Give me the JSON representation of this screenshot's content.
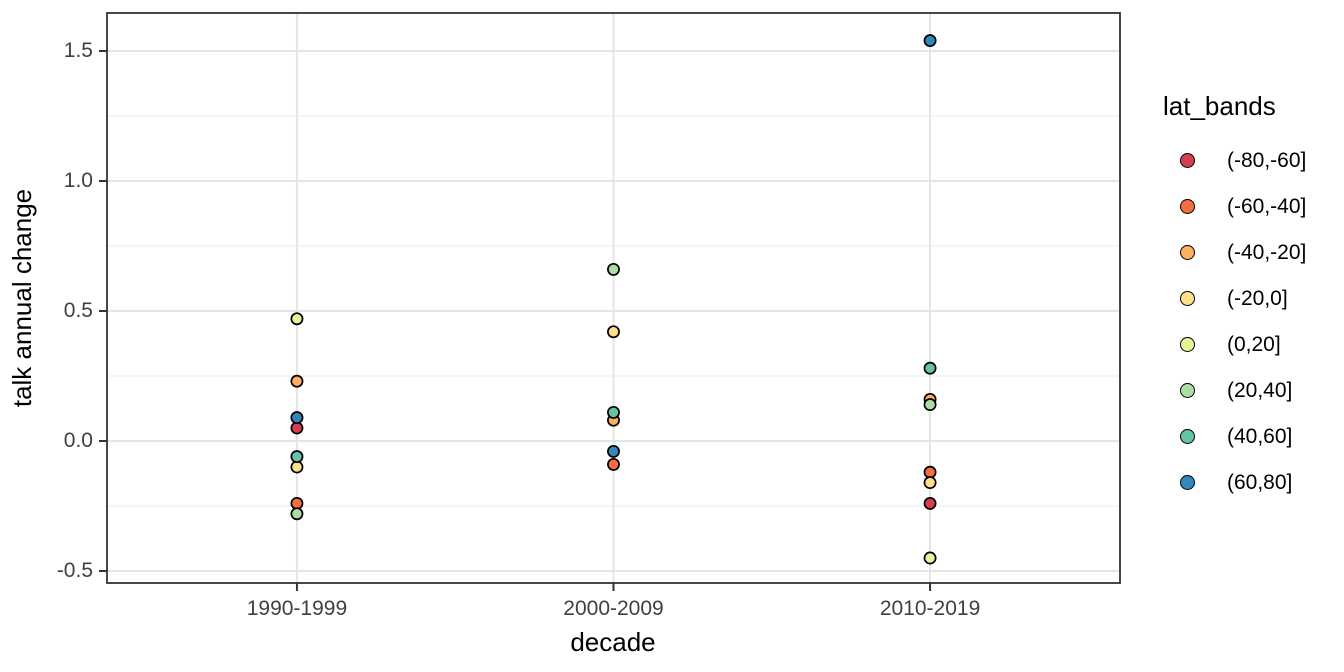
{
  "chart_data": {
    "type": "scatter",
    "title": "",
    "xlabel": "decade",
    "ylabel": "talk annual change",
    "categories": [
      "1990-1999",
      "2000-2009",
      "2010-2019"
    ],
    "y_ticks": [
      {
        "value": -0.5,
        "label": "-0.5"
      },
      {
        "value": 0.0,
        "label": "0.0"
      },
      {
        "value": 0.5,
        "label": "0.5"
      },
      {
        "value": 1.0,
        "label": "1.0"
      },
      {
        "value": 1.5,
        "label": "1.5"
      }
    ],
    "y_minor_ticks": [
      -0.25,
      0.25,
      0.75,
      1.25
    ],
    "ylim": [
      -0.55,
      1.65
    ],
    "grid": true,
    "legend": {
      "title": "lat_bands",
      "position": "right"
    },
    "point_style": {
      "shape": "circle-black-outline",
      "outline_color": "#000000"
    },
    "series": [
      {
        "name": "(-80,-60]",
        "color": "#d53e4f",
        "points": [
          {
            "x": "1990-1999",
            "y": 0.05
          },
          {
            "x": "2010-2019",
            "y": -0.24
          }
        ]
      },
      {
        "name": "(-60,-40]",
        "color": "#f46d43",
        "points": [
          {
            "x": "1990-1999",
            "y": -0.24
          },
          {
            "x": "2000-2009",
            "y": -0.09
          },
          {
            "x": "2010-2019",
            "y": -0.12
          }
        ]
      },
      {
        "name": "(-40,-20]",
        "color": "#fdae61",
        "points": [
          {
            "x": "1990-1999",
            "y": 0.23
          },
          {
            "x": "2000-2009",
            "y": 0.08
          },
          {
            "x": "2010-2019",
            "y": 0.16
          }
        ]
      },
      {
        "name": "(-20,0]",
        "color": "#fee08b",
        "points": [
          {
            "x": "1990-1999",
            "y": -0.1
          },
          {
            "x": "2000-2009",
            "y": 0.42
          },
          {
            "x": "2010-2019",
            "y": -0.16
          }
        ]
      },
      {
        "name": "(0,20]",
        "color": "#e6f598",
        "points": [
          {
            "x": "1990-1999",
            "y": 0.47
          },
          {
            "x": "2010-2019",
            "y": -0.45
          }
        ]
      },
      {
        "name": "(20,40]",
        "color": "#abdda4",
        "points": [
          {
            "x": "1990-1999",
            "y": -0.28
          },
          {
            "x": "2000-2009",
            "y": 0.66
          },
          {
            "x": "2010-2019",
            "y": 0.14
          }
        ]
      },
      {
        "name": "(40,60]",
        "color": "#66c2a5",
        "points": [
          {
            "x": "1990-1999",
            "y": -0.06
          },
          {
            "x": "2000-2009",
            "y": 0.11
          },
          {
            "x": "2010-2019",
            "y": 0.28
          }
        ]
      },
      {
        "name": "(60,80]",
        "color": "#3288bd",
        "points": [
          {
            "x": "1990-1999",
            "y": 0.09
          },
          {
            "x": "2000-2009",
            "y": -0.04
          },
          {
            "x": "2010-2019",
            "y": 1.54
          }
        ]
      }
    ]
  }
}
